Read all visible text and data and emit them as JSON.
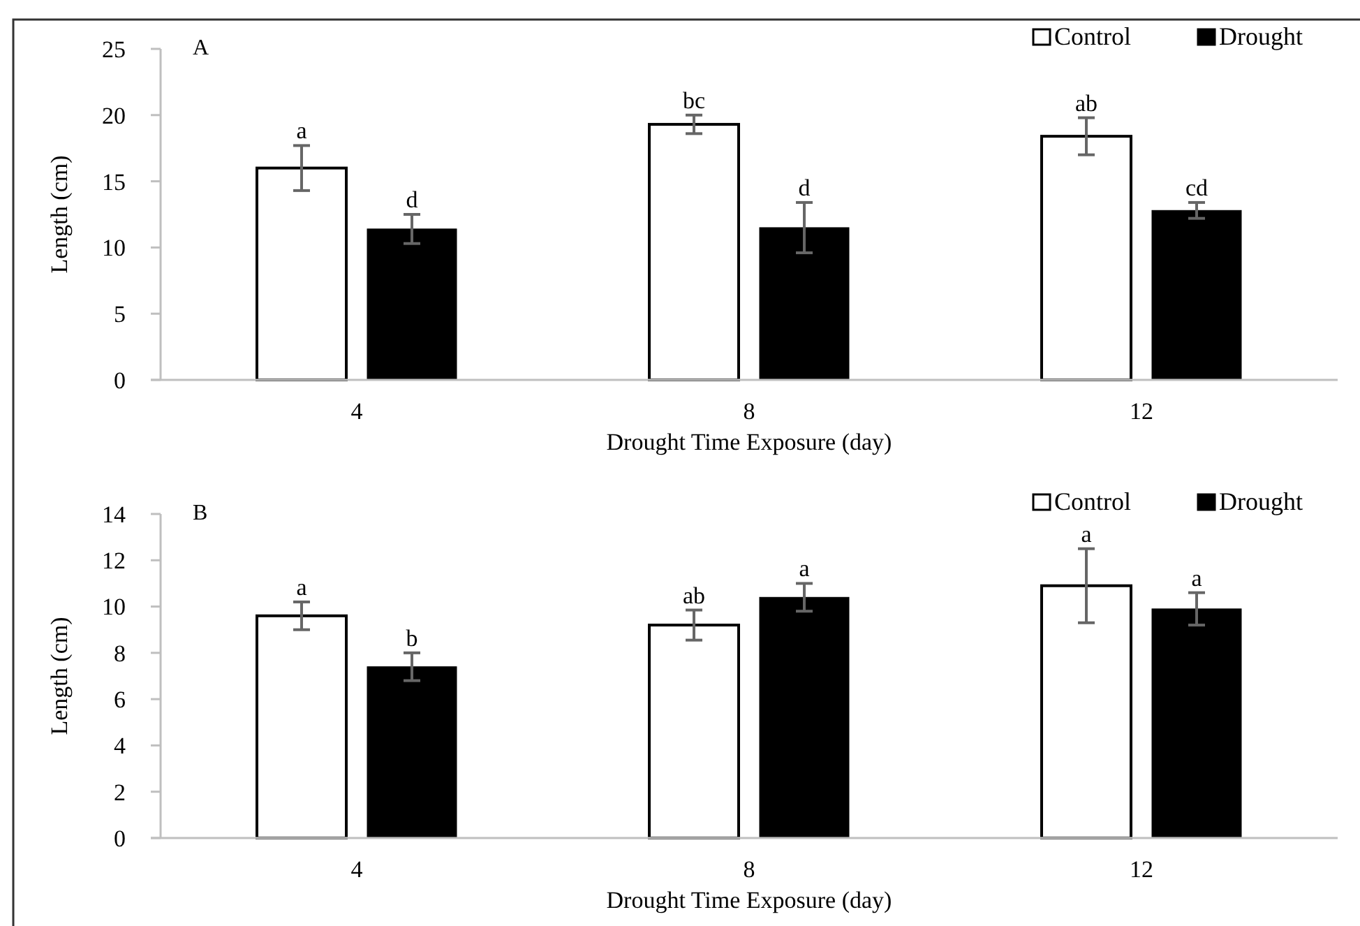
{
  "chart_data": [
    {
      "type": "bar",
      "title": "A",
      "xlabel": "Drought Time Exposure (day)",
      "ylabel": "Length (cm)",
      "categories": [
        "4",
        "8",
        "12"
      ],
      "ylim": [
        0,
        25
      ],
      "yticks": [
        0,
        5,
        10,
        15,
        20,
        25
      ],
      "grid": false,
      "legend": "top right",
      "series": [
        {
          "name": "Control",
          "color": "#ffffff",
          "values": [
            16.0,
            19.3,
            18.4
          ],
          "errors": [
            1.7,
            0.7,
            1.4
          ]
        },
        {
          "name": "Drought",
          "color": "#000000",
          "values": [
            11.4,
            11.5,
            12.8
          ],
          "errors": [
            1.1,
            1.9,
            0.6
          ]
        }
      ],
      "annotations": [
        "a",
        "d",
        "bc",
        "d",
        "ab",
        "cd"
      ]
    },
    {
      "type": "bar",
      "title": "B",
      "xlabel": "Drought Time Exposure (day)",
      "ylabel": "Length (cm)",
      "categories": [
        "4",
        "8",
        "12"
      ],
      "ylim": [
        0,
        14
      ],
      "yticks": [
        0,
        2,
        4,
        6,
        8,
        10,
        12,
        14
      ],
      "grid": false,
      "legend": "top right",
      "series": [
        {
          "name": "Control",
          "color": "#ffffff",
          "values": [
            9.6,
            9.2,
            10.9
          ],
          "errors": [
            0.6,
            0.65,
            1.6
          ]
        },
        {
          "name": "Drought",
          "color": "#000000",
          "values": [
            7.4,
            10.4,
            9.9
          ],
          "errors": [
            0.6,
            0.6,
            0.7
          ]
        }
      ],
      "annotations": [
        "a",
        "b",
        "ab",
        "a",
        "a",
        "a"
      ]
    }
  ]
}
